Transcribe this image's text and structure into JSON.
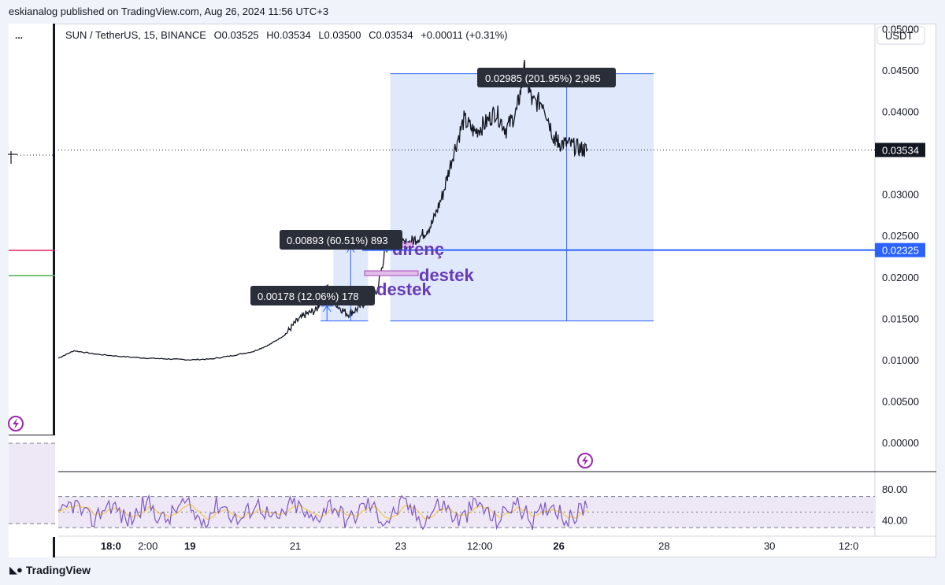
{
  "publish_line": "eskianalog published on TradingView.com, Aug 26, 2024 11:56 UTC+3",
  "header": {
    "symbol": "SUN / TetherUS, 15, BINANCE",
    "open": "O0.03525",
    "high": "H0.03534",
    "low": "L0.03500",
    "close": "C0.03534",
    "change": "+0.00011 (+0.31%)"
  },
  "left_menu": "...",
  "branding": "TradingView",
  "colors": {
    "price_line": "#131722",
    "measure_fill": "#dbe5fb",
    "measure_stroke": "#2962ff",
    "annotation": "#673ab7",
    "support_line": "#2962ff",
    "rsi_line": "#7e57c2",
    "rsi_ma": "#f7c948",
    "rsi_band": "#ede7f6"
  },
  "chart_data": {
    "type": "line",
    "currency_label": "USDT",
    "y_ticks": [
      "0.05000",
      "0.04500",
      "0.04000",
      "0.03000",
      "0.02500",
      "0.02000",
      "0.01500",
      "0.01000",
      "0.00500",
      "0.00000"
    ],
    "y_tick_values": [
      0.05,
      0.045,
      0.04,
      0.03,
      0.025,
      0.02,
      0.015,
      0.01,
      0.005,
      0.0
    ],
    "ylim": [
      -0.0035,
      0.0505
    ],
    "x_ticks": [
      "18:0",
      "2:00",
      "19",
      "21",
      "23",
      "12:00",
      "26",
      "28",
      "30",
      "12:0"
    ],
    "x_tick_bold": [
      true,
      false,
      true,
      false,
      false,
      false,
      true,
      false,
      false,
      false
    ],
    "x_tick_t": [
      -0.5,
      0.2,
      1.0,
      3.0,
      5.0,
      6.5,
      8.0,
      10.0,
      12.0,
      13.5
    ],
    "xlim": [
      -1.5,
      14.0
    ],
    "current_price": "0.03534",
    "current_price_value": 0.03534,
    "level_price": "0.02325",
    "level_price_value": 0.02325,
    "series": [
      {
        "t": [
          -1.5,
          -1.2,
          -0.8,
          -0.3,
          0.2,
          0.6,
          1.0,
          1.4,
          1.8,
          2.2,
          2.5,
          2.8,
          3.0,
          3.2,
          3.4,
          3.6,
          3.8,
          4.0,
          4.2,
          4.4,
          4.55,
          4.7,
          4.8,
          4.9,
          5.0,
          5.2,
          5.4,
          5.6,
          5.8,
          6.0,
          6.2,
          6.4,
          6.6,
          6.8,
          7.0,
          7.2,
          7.35,
          7.5,
          7.7,
          7.9,
          8.0,
          8.2,
          8.4,
          8.55
        ],
        "values": [
          0.0102,
          0.0111,
          0.0107,
          0.0104,
          0.0102,
          0.0101,
          0.01,
          0.0101,
          0.0105,
          0.011,
          0.0118,
          0.013,
          0.0145,
          0.0155,
          0.016,
          0.019,
          0.0165,
          0.0155,
          0.0162,
          0.0175,
          0.0182,
          0.023,
          0.0246,
          0.024,
          0.0238,
          0.0243,
          0.025,
          0.0265,
          0.03,
          0.035,
          0.039,
          0.0375,
          0.0385,
          0.04,
          0.0378,
          0.04,
          0.045,
          0.041,
          0.0412,
          0.037,
          0.0362,
          0.036,
          0.0355,
          0.0353
        ]
      }
    ],
    "measurements": [
      {
        "label": "0.02985 (201.95%) 2,985"
      },
      {
        "label": "0.00893 (60.51%) 893"
      },
      {
        "label": "0.00178 (12.06%) 178"
      }
    ],
    "annotations": [
      "direnç",
      "destek",
      "destek"
    ],
    "rsi": {
      "ticks": [
        "80.00",
        "40.00"
      ],
      "tick_values": [
        80,
        40
      ],
      "ylim": [
        20,
        100
      ],
      "upper_band": 70,
      "lower_band": 30,
      "mid": 50
    }
  }
}
